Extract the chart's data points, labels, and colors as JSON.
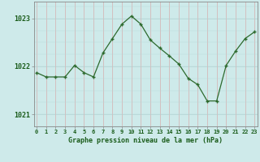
{
  "hours": [
    0,
    1,
    2,
    3,
    4,
    5,
    6,
    7,
    8,
    9,
    10,
    11,
    12,
    13,
    14,
    15,
    16,
    17,
    18,
    19,
    20,
    21,
    22,
    23
  ],
  "pressure": [
    1021.87,
    1021.78,
    1021.78,
    1021.78,
    1022.02,
    1021.87,
    1021.78,
    1022.28,
    1022.58,
    1022.88,
    1023.05,
    1022.88,
    1022.55,
    1022.38,
    1022.22,
    1022.05,
    1021.75,
    1021.62,
    1021.28,
    1021.28,
    1022.02,
    1022.32,
    1022.58,
    1022.72
  ],
  "line_color": "#2d6a2d",
  "marker": "+",
  "bg_color": "#ceeaea",
  "grid_color_h": "#b8d8d8",
  "grid_color_v": "#d4b8b8",
  "xlabel": "Graphe pression niveau de la mer (hPa)",
  "xlabel_color": "#1a5c1a",
  "tick_label_color": "#1a5c1a",
  "axis_color": "#888888",
  "ylim": [
    1020.75,
    1023.35
  ],
  "yticks": [
    1021,
    1022,
    1023
  ],
  "xlim": [
    -0.3,
    23.3
  ],
  "figsize": [
    3.2,
    2.0
  ],
  "dpi": 100
}
